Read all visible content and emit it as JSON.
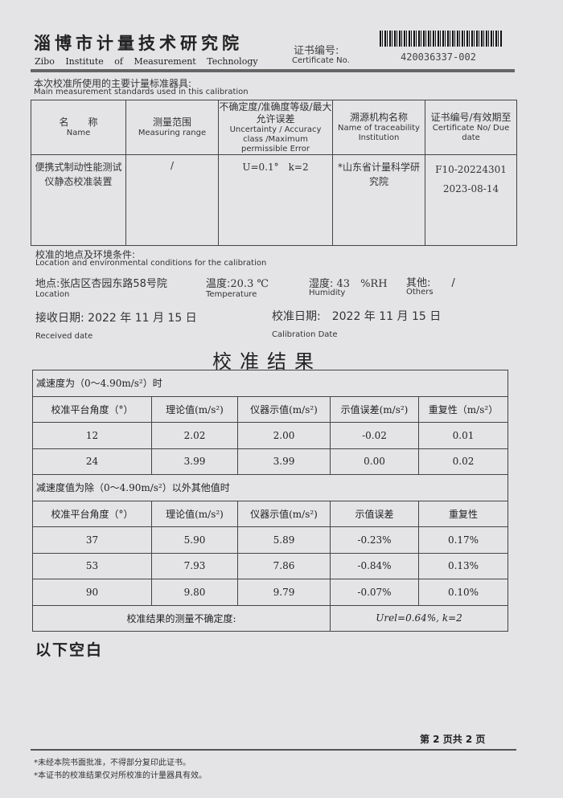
{
  "header": {
    "org_cn": "淄博市计量技术研究院",
    "org_en": "Zibo Institute of Measurement Technology",
    "cert_label_cn": "证书编号:",
    "cert_label_en": "Certificate No.",
    "cert_no": "420036337-002"
  },
  "standards": {
    "title_cn": "本次校准所使用的主要计量标准器具:",
    "title_en": "Main measurement standards used in this calibration",
    "headers": [
      {
        "cn": "名　　称",
        "en": "Name"
      },
      {
        "cn": "测量范围",
        "en": "Measuring range"
      },
      {
        "cn": "不确定度/准确度等级/最大允许误差",
        "en": "Uncertainty / Accuracy class /Maximum permissible Error"
      },
      {
        "cn": "溯源机构名称",
        "en": "Name of traceability Institution"
      },
      {
        "cn": "证书编号/有效期至",
        "en": "Certificate No/ Due date"
      }
    ],
    "rows": [
      {
        "name": "便携式制动性能测试仪静态校准装置",
        "range": "/",
        "uncertainty": "U=0.1°　k=2",
        "institution": "*山东省计量科学研究院",
        "cert": "F10-20224301",
        "due": "2023-08-14"
      }
    ]
  },
  "conditions": {
    "title_cn": "校准的地点及环境条件:",
    "title_en": "Location and environmental conditions for the calibration",
    "location_label": "地点:",
    "location": "张店区杏园东路58号院",
    "location_en": "Location",
    "temp_label": "温度:",
    "temp": "20.3 ℃",
    "temp_en": "Temperature",
    "hum_label": "湿度:",
    "hum": "43　%RH",
    "hum_en": "Humidity",
    "other_label": "其他:",
    "other": "/",
    "other_en": "Others",
    "recv_label": "接收日期:",
    "recv": "2022 年 11 月 15 日",
    "recv_en": "Received date",
    "cal_label": "校准日期:",
    "cal": "2022 年 11 月 15 日",
    "cal_en": "Calibration Date"
  },
  "results": {
    "title": "校准结果",
    "sec1": "减速度为（0～4.90m/s²）时",
    "h1": [
      "校准平台角度（°）",
      "理论值(m/s²)",
      "仪器示值(m/s²)",
      "示值误差(m/s²)",
      "重复性（m/s²）"
    ],
    "rows1": [
      [
        "12",
        "2.02",
        "2.00",
        "-0.02",
        "0.01"
      ],
      [
        "24",
        "3.99",
        "3.99",
        "0.00",
        "0.02"
      ]
    ],
    "sec2": "减速度值为除（0～4.90m/s²）以外其他值时",
    "h2": [
      "校准平台角度（°）",
      "理论值(m/s²)",
      "仪器示值(m/s²)",
      "示值误差",
      "重复性"
    ],
    "rows2": [
      [
        "37",
        "5.90",
        "5.89",
        "-0.23%",
        "0.17%"
      ],
      [
        "53",
        "7.93",
        "7.86",
        "-0.84%",
        "0.13%"
      ],
      [
        "90",
        "9.80",
        "9.79",
        "-0.07%",
        "0.10%"
      ]
    ],
    "unc_label": "校准结果的测量不确定度:",
    "unc_value": "Urel=0.64%, k=2"
  },
  "blank": "以下空白",
  "footer": {
    "page": "第 2 页共 2 页",
    "note1": "*未经本院书面批准，不得部分复印此证书。",
    "note2": "*本证书的校准结果仅对所校准的计量器具有效。"
  }
}
